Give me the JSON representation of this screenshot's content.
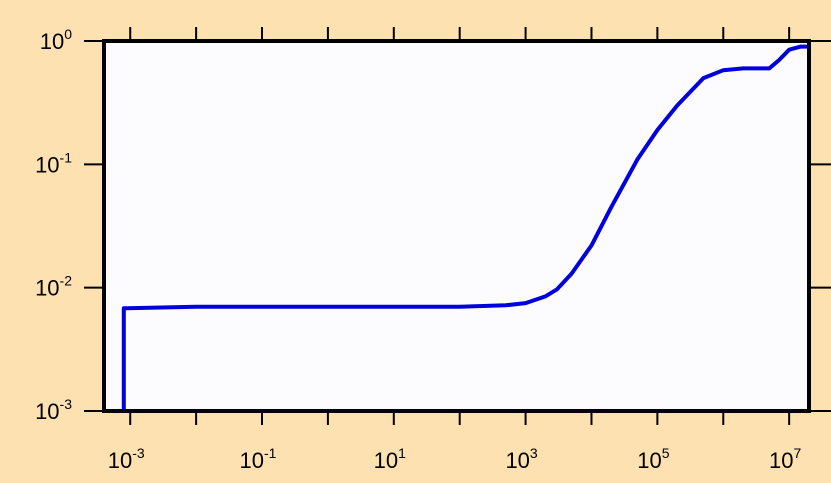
{
  "chart_data": {
    "type": "line",
    "title": "",
    "xlabel": "",
    "ylabel": "",
    "x_scale": "log",
    "y_scale": "log",
    "xlim": [
      0.0004,
      20000000
    ],
    "ylim": [
      0.001,
      1
    ],
    "grid": false,
    "legend": "none",
    "colors": {
      "background": "#fde1b0",
      "plot_bg": "#fcfcff",
      "line": "#0000dd",
      "frame": "#000000"
    },
    "x_ticks": [
      {
        "base": "10",
        "exp": "-3",
        "value": 0.001
      },
      {
        "base": "10",
        "exp": "-1",
        "value": 0.1
      },
      {
        "base": "10",
        "exp": "1",
        "value": 10
      },
      {
        "base": "10",
        "exp": "3",
        "value": 1000
      },
      {
        "base": "10",
        "exp": "5",
        "value": 100000
      },
      {
        "base": "10",
        "exp": "7",
        "value": 10000000
      }
    ],
    "y_ticks": [
      {
        "base": "10",
        "exp": "0",
        "value": 1
      },
      {
        "base": "10",
        "exp": "-1",
        "value": 0.1
      },
      {
        "base": "10",
        "exp": "-2",
        "value": 0.01
      },
      {
        "base": "10",
        "exp": "-3",
        "value": 0.001
      }
    ],
    "series": [
      {
        "x": [
          0.0008,
          0.0008,
          0.01,
          1,
          100,
          500,
          1000,
          2000,
          3000,
          5000,
          10000,
          20000,
          50000,
          100000,
          200000,
          500000,
          1000000,
          2000000,
          5000000,
          7000000,
          10000000,
          15000000,
          20000000,
          20000000
        ],
        "y": [
          0.001,
          0.0068,
          0.007,
          0.007,
          0.007,
          0.0072,
          0.0075,
          0.0085,
          0.0097,
          0.013,
          0.022,
          0.045,
          0.11,
          0.19,
          0.3,
          0.5,
          0.58,
          0.6,
          0.6,
          0.7,
          0.85,
          0.9,
          0.9,
          0.001
        ]
      }
    ]
  }
}
